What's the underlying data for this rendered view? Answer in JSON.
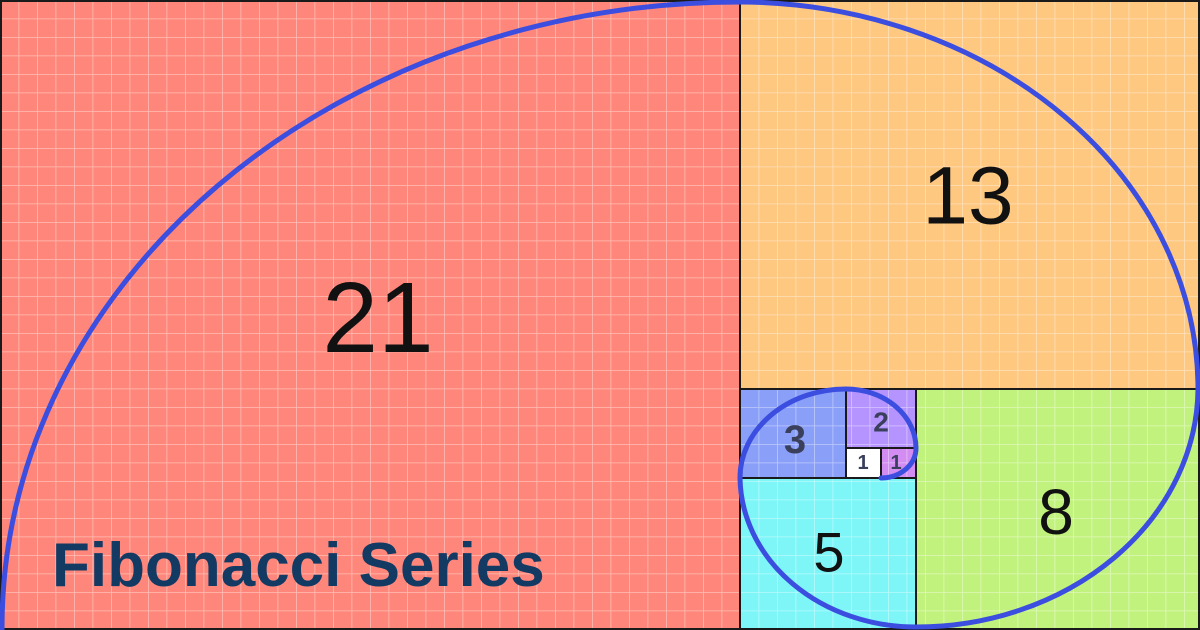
{
  "title": "Fibonacci Series",
  "squares": [
    {
      "label": "21",
      "color": "#ff867a"
    },
    {
      "label": "13",
      "color": "#ffc880"
    },
    {
      "label": "8",
      "color": "#c2f27e"
    },
    {
      "label": "5",
      "color": "#7ef6f8"
    },
    {
      "label": "3",
      "color": "#8a9ff8"
    },
    {
      "label": "2",
      "color": "#b694ff"
    },
    {
      "label": "1",
      "color": "#d38cf2"
    },
    {
      "label": "1",
      "color": "#ffffff"
    }
  ],
  "spiral_color": "#3b4ee0",
  "title_color": "#133a63"
}
